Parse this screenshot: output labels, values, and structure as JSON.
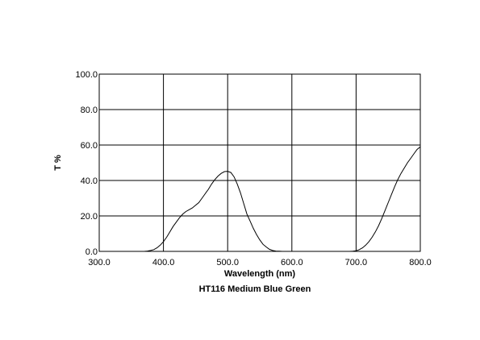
{
  "chart_data": {
    "type": "line",
    "title": "HT116 Medium Blue Green",
    "xlabel": "Wavelength (nm)",
    "ylabel": "T %",
    "xlim": [
      300,
      800
    ],
    "ylim": [
      0,
      100
    ],
    "x_ticks": [
      "300.0",
      "400.0",
      "500.0",
      "600.0",
      "700.0",
      "800.0"
    ],
    "y_ticks": [
      "0.0",
      "20.0",
      "40.0",
      "60.0",
      "80.0",
      "100.0"
    ],
    "grid": true,
    "legend": "none",
    "line_color": "#000000",
    "series": [
      {
        "x": [
          370,
          375,
          380,
          385,
          390,
          395,
          400,
          405,
          410,
          415,
          420,
          425,
          430,
          435,
          440,
          445,
          450,
          455,
          460,
          465,
          470,
          475,
          480,
          485,
          490,
          495,
          500,
          505,
          510,
          515,
          520,
          525,
          530,
          535,
          540,
          545,
          550,
          555,
          560,
          565,
          570,
          575,
          580,
          585,
          590,
          595,
          600,
          690,
          695,
          700,
          705,
          710,
          715,
          720,
          725,
          730,
          735,
          740,
          745,
          750,
          755,
          760,
          765,
          770,
          775,
          780,
          785,
          790,
          795,
          800
        ],
        "values": [
          0,
          0.2,
          0.5,
          1,
          2,
          3.5,
          5.5,
          8,
          11,
          14,
          16.5,
          19,
          21,
          22.5,
          23.5,
          24.5,
          26,
          27.5,
          30,
          32.5,
          35,
          38,
          40.5,
          42.5,
          44,
          45,
          45.2,
          44.5,
          42,
          38,
          33,
          27,
          21,
          17,
          13,
          9.5,
          6.5,
          4,
          2.5,
          1.2,
          0.5,
          0.2,
          0.1,
          0,
          0,
          0,
          0,
          0,
          0.1,
          0.3,
          1,
          2,
          3.5,
          5.5,
          8,
          11,
          14.5,
          18.5,
          23,
          27.5,
          32,
          36.5,
          40.5,
          44,
          47,
          50,
          52.5,
          55,
          57.5,
          59
        ]
      }
    ]
  }
}
